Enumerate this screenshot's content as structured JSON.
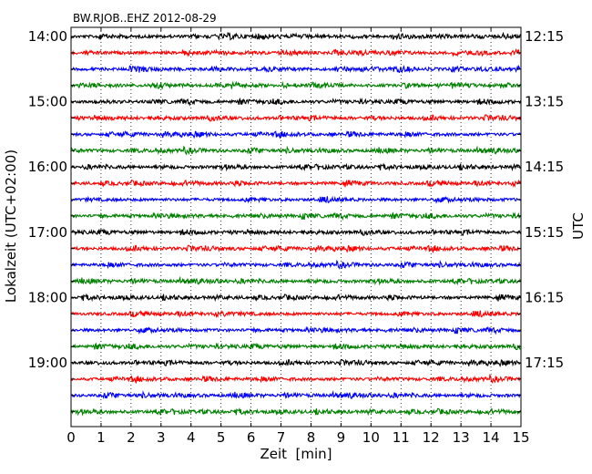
{
  "chart_data": {
    "type": "line",
    "title": "BW.RJOB..EHZ 2012-08-29",
    "xlabel": "Zeit  [min]",
    "ylabel": "Lokalzeit (UTC+02:00)",
    "ylabel_right": "UTC",
    "xlim": [
      0,
      15
    ],
    "x_ticks": [
      "0",
      "1",
      "2",
      "3",
      "4",
      "5",
      "6",
      "7",
      "8",
      "9",
      "10",
      "11",
      "12",
      "13",
      "14",
      "15"
    ],
    "y_ticks_left": [
      "14:00",
      "15:00",
      "16:00",
      "17:00",
      "18:00",
      "19:00"
    ],
    "y_ticks_right": [
      "12:15",
      "13:15",
      "14:15",
      "15:15",
      "16:15",
      "17:15"
    ],
    "trace_count": 24,
    "trace_interval_minutes": 15,
    "trace_colors": [
      "#000000",
      "#ff0000",
      "#0000ff",
      "#008000"
    ],
    "grid": "vertical dotted",
    "amplitude_note": "continuous low-amplitude seismic noise traces"
  }
}
